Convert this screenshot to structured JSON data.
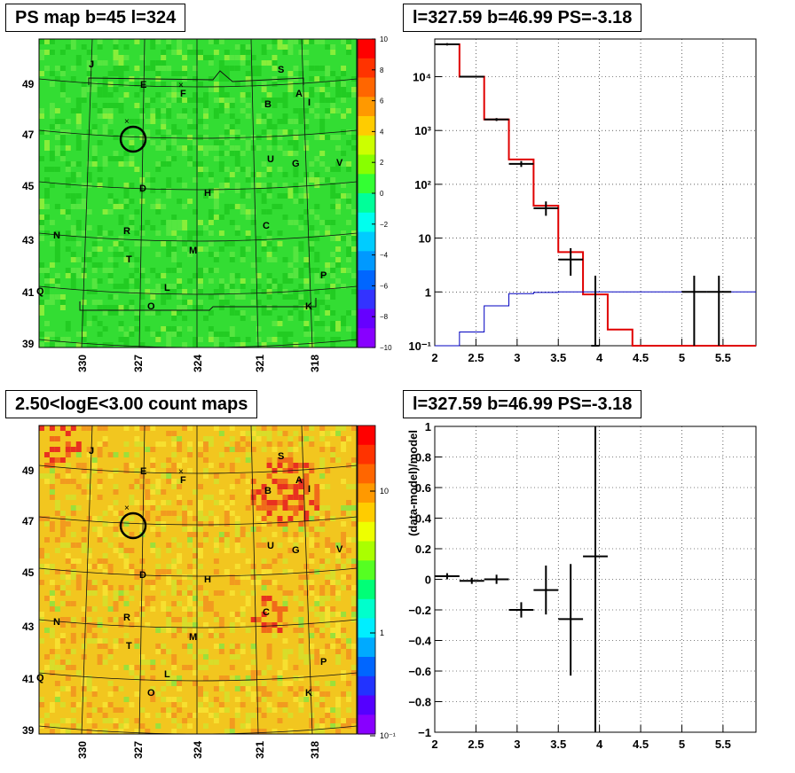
{
  "panels": {
    "ps_map_title": "PS map b=45 l=324",
    "spectrum_title": "l=327.59 b=46.99 PS=-3.18",
    "count_map_title": "2.50<logE<3.00 count maps",
    "residual_title": "l=327.59 b=46.99 PS=-3.18"
  },
  "colors": {
    "model_line": "#e00000",
    "background_line": "#0000c0",
    "data_points": "#000000",
    "ps_map_fill": "#33dd33",
    "count_map_fill": "#f2c61f"
  },
  "sky_maps": {
    "lon_ticks": [
      "330",
      "327",
      "324",
      "321",
      "318"
    ],
    "lat_ticks": [
      "49",
      "47",
      "45",
      "43",
      "41",
      "39"
    ],
    "source_labels": [
      "J",
      "E",
      "F",
      "S",
      "A",
      "I",
      "B",
      "U",
      "G",
      "V",
      "D",
      "H",
      "C",
      "N",
      "R",
      "T",
      "M",
      "P",
      "Q",
      "L",
      "O",
      "K"
    ],
    "ps_colorbar_ticks": [
      "10",
      "8",
      "6",
      "4",
      "2",
      "0",
      "−2",
      "−4",
      "−6",
      "−8",
      "−10"
    ],
    "count_colorbar_ticks": [
      "10",
      "1",
      "10⁻¹"
    ]
  },
  "chart_data": [
    {
      "type": "line",
      "panel": "spectrum",
      "x_ticks": [
        "2",
        "2.5",
        "3",
        "3.5",
        "4",
        "4.5",
        "5",
        "5.5"
      ],
      "y_ticks": [
        "10⁻¹",
        "1",
        "10",
        "10²",
        "10³",
        "10⁴"
      ],
      "xlim": [
        2,
        5.9
      ],
      "ylim_log10": [
        -1,
        4.7
      ],
      "log_y": true,
      "grid": true,
      "bin_edges": [
        2.0,
        2.3,
        2.6,
        2.9,
        3.2,
        3.5,
        3.8,
        4.1,
        4.4,
        5.9
      ],
      "series": [
        {
          "values": [
            40000,
            10000,
            1600,
            290,
            40,
            5.5,
            0.9,
            0.2,
            0.1
          ]
        },
        {
          "values": [
            0.1,
            0.18,
            0.55,
            0.93,
            0.98,
            1.0,
            1.0,
            1.0,
            1.0
          ]
        }
      ],
      "points": [
        {
          "x": 2.15,
          "y": 40000,
          "xerr": 0.15,
          "ylo": 38000,
          "yhi": 42000
        },
        {
          "x": 2.45,
          "y": 10000,
          "xerr": 0.15,
          "ylo": 9700,
          "yhi": 10300
        },
        {
          "x": 2.75,
          "y": 1600,
          "xerr": 0.15,
          "ylo": 1500,
          "yhi": 1700
        },
        {
          "x": 3.05,
          "y": 240,
          "xerr": 0.15,
          "ylo": 210,
          "yhi": 270
        },
        {
          "x": 3.35,
          "y": 36,
          "xerr": 0.15,
          "ylo": 26,
          "yhi": 48
        },
        {
          "x": 3.65,
          "y": 4,
          "xerr": 0.15,
          "ylo": 2,
          "yhi": 6.5
        },
        {
          "x": 3.95,
          "y": 0.1,
          "xerr": 0.05,
          "ylo": 0.1,
          "yhi": 2
        },
        {
          "x": 5.15,
          "y": 1,
          "xerr": 0.15,
          "ylo": 0.1,
          "yhi": 2
        },
        {
          "x": 5.45,
          "y": 1,
          "xerr": 0.15,
          "ylo": 0.1,
          "yhi": 2
        }
      ]
    },
    {
      "type": "scatter",
      "panel": "residual",
      "ylabel": "(data-model)/model",
      "x_ticks": [
        "2",
        "2.5",
        "3",
        "3.5",
        "4",
        "4.5",
        "5",
        "5.5"
      ],
      "y_ticks": [
        "1",
        "0.8",
        "0.6",
        "0.4",
        "0.2",
        "0",
        "−0.2",
        "−0.4",
        "−0.6",
        "−0.8",
        "−1"
      ],
      "xlim": [
        2,
        5.9
      ],
      "ylim": [
        -1,
        1
      ],
      "grid": true,
      "points": [
        {
          "x": 2.15,
          "y": 0.02,
          "xerr": 0.15,
          "ylo": 0.0,
          "yhi": 0.04
        },
        {
          "x": 2.45,
          "y": -0.01,
          "xerr": 0.15,
          "ylo": -0.03,
          "yhi": 0.01
        },
        {
          "x": 2.75,
          "y": 0.0,
          "xerr": 0.15,
          "ylo": -0.03,
          "yhi": 0.03
        },
        {
          "x": 3.05,
          "y": -0.2,
          "xerr": 0.15,
          "ylo": -0.25,
          "yhi": -0.15
        },
        {
          "x": 3.35,
          "y": -0.07,
          "xerr": 0.15,
          "ylo": -0.23,
          "yhi": 0.09
        },
        {
          "x": 3.65,
          "y": -0.26,
          "xerr": 0.15,
          "ylo": -0.63,
          "yhi": 0.1
        },
        {
          "x": 3.95,
          "y": 0.15,
          "xerr": 0.15,
          "ylo": -1,
          "yhi": 1
        }
      ]
    }
  ]
}
